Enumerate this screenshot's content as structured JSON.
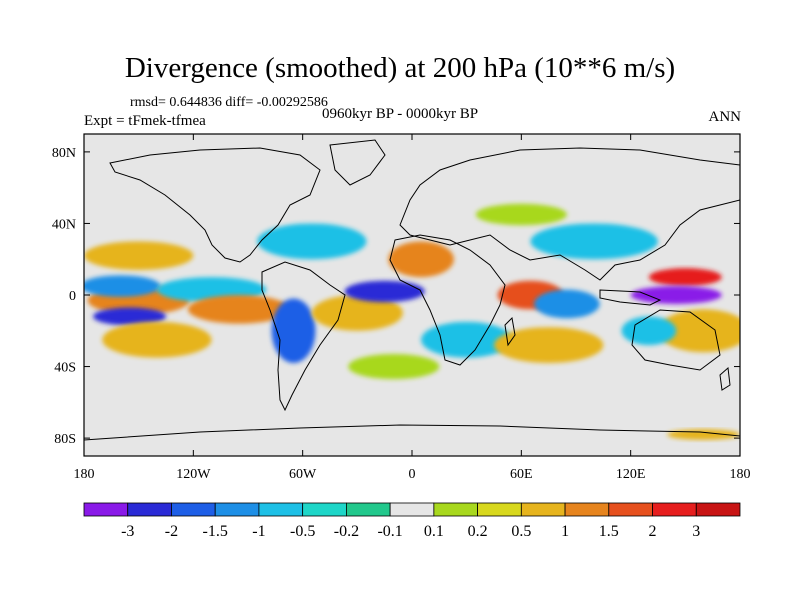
{
  "title": "Divergence (smoothed) at 200 hPa (10**6 m/s)",
  "stats": "rmsd= 0.644836 diff= -0.00292586",
  "expt": "Expt = tFmek-tfmea",
  "period": "0960kyr BP - 0000kyr BP",
  "season": "ANN",
  "axes": {
    "lat_labels": [
      "80N",
      "40N",
      "0",
      "40S",
      "80S"
    ],
    "lat_values": [
      80,
      40,
      0,
      -40,
      -80
    ],
    "lon_labels": [
      "180",
      "120W",
      "60W",
      "0",
      "60E",
      "120E",
      "180"
    ],
    "lon_values": [
      -180,
      -120,
      -60,
      0,
      60,
      120,
      180
    ],
    "lat_range": [
      -90,
      90
    ],
    "lon_range": [
      -180,
      180
    ]
  },
  "colorbar": {
    "labels": [
      "-3",
      "-2",
      "-1.5",
      "-1",
      "-0.5",
      "-0.2",
      "-0.1",
      "0.1",
      "0.2",
      "0.5",
      "1",
      "1.5",
      "2",
      "3"
    ],
    "colors": [
      "#8a1ae8",
      "#2a2ad6",
      "#1e5ee6",
      "#1e8fe6",
      "#1ec0e6",
      "#1ed6c8",
      "#22c88c",
      "#e6e6e6",
      "#a8d81e",
      "#d8d81e",
      "#e6b41e",
      "#e6841e",
      "#e6501e",
      "#e61e1e",
      "#c81414"
    ]
  },
  "map": {
    "background_color": "#e6e6e6",
    "features": [
      {
        "name": "pacific-east-pos",
        "lon": -150,
        "lat": -3,
        "rx": 28,
        "ry": 8,
        "color": "#e6841e"
      },
      {
        "name": "pacific-neg-north",
        "lon": -160,
        "lat": 5,
        "rx": 22,
        "ry": 6,
        "color": "#1e8fe6"
      },
      {
        "name": "pacific-neg-south",
        "lon": -155,
        "lat": -12,
        "rx": 20,
        "ry": 5,
        "color": "#2a2ad6"
      },
      {
        "name": "pacific-pos-south",
        "lon": -140,
        "lat": -25,
        "rx": 30,
        "ry": 10,
        "color": "#e6b41e"
      },
      {
        "name": "pacific-pos-north",
        "lon": -150,
        "lat": 22,
        "rx": 30,
        "ry": 8,
        "color": "#e6b41e"
      },
      {
        "name": "eq-pacific-neg",
        "lon": -110,
        "lat": 3,
        "rx": 30,
        "ry": 7,
        "color": "#1ec0e6"
      },
      {
        "name": "eq-pacific-pos",
        "lon": -95,
        "lat": -8,
        "rx": 28,
        "ry": 8,
        "color": "#e6841e"
      },
      {
        "name": "samerica-neg",
        "lon": -65,
        "lat": -20,
        "rx": 12,
        "ry": 18,
        "color": "#1e5ee6"
      },
      {
        "name": "atlantic-north-neg",
        "lon": -55,
        "lat": 30,
        "rx": 30,
        "ry": 10,
        "color": "#1ec0e6"
      },
      {
        "name": "atlantic-pos",
        "lon": -30,
        "lat": -10,
        "rx": 25,
        "ry": 10,
        "color": "#e6b41e"
      },
      {
        "name": "atlantic-eq-neg",
        "lon": -15,
        "lat": 2,
        "rx": 22,
        "ry": 6,
        "color": "#2a2ad6"
      },
      {
        "name": "africa-pos",
        "lon": 5,
        "lat": 20,
        "rx": 18,
        "ry": 10,
        "color": "#e6841e"
      },
      {
        "name": "africa-neg",
        "lon": 30,
        "lat": -25,
        "rx": 25,
        "ry": 10,
        "color": "#1ec0e6"
      },
      {
        "name": "indian-pos",
        "lon": 65,
        "lat": 0,
        "rx": 18,
        "ry": 8,
        "color": "#e6501e"
      },
      {
        "name": "indian-neg",
        "lon": 85,
        "lat": -5,
        "rx": 18,
        "ry": 8,
        "color": "#1e8fe6"
      },
      {
        "name": "indian-south-pos",
        "lon": 75,
        "lat": -28,
        "rx": 30,
        "ry": 10,
        "color": "#e6b41e"
      },
      {
        "name": "asia-neg",
        "lon": 100,
        "lat": 30,
        "rx": 35,
        "ry": 10,
        "color": "#1ec0e6"
      },
      {
        "name": "wpacific-pos",
        "lon": 150,
        "lat": 10,
        "rx": 20,
        "ry": 5,
        "color": "#e61e1e"
      },
      {
        "name": "wpacific-neg",
        "lon": 145,
        "lat": 0,
        "rx": 25,
        "ry": 5,
        "color": "#8a1ae8"
      },
      {
        "name": "wpacific-south-pos",
        "lon": 160,
        "lat": -20,
        "rx": 25,
        "ry": 12,
        "color": "#e6b41e"
      },
      {
        "name": "australia-neg",
        "lon": 130,
        "lat": -20,
        "rx": 15,
        "ry": 8,
        "color": "#1ec0e6"
      },
      {
        "name": "nh-midlat-pos",
        "lon": 60,
        "lat": 45,
        "rx": 25,
        "ry": 6,
        "color": "#a8d81e"
      },
      {
        "name": "south-atl-pos",
        "lon": -10,
        "lat": -40,
        "rx": 25,
        "ry": 7,
        "color": "#a8d81e"
      },
      {
        "name": "antarctic-pos",
        "lon": 160,
        "lat": -78,
        "rx": 20,
        "ry": 3,
        "color": "#e6b41e"
      }
    ]
  }
}
